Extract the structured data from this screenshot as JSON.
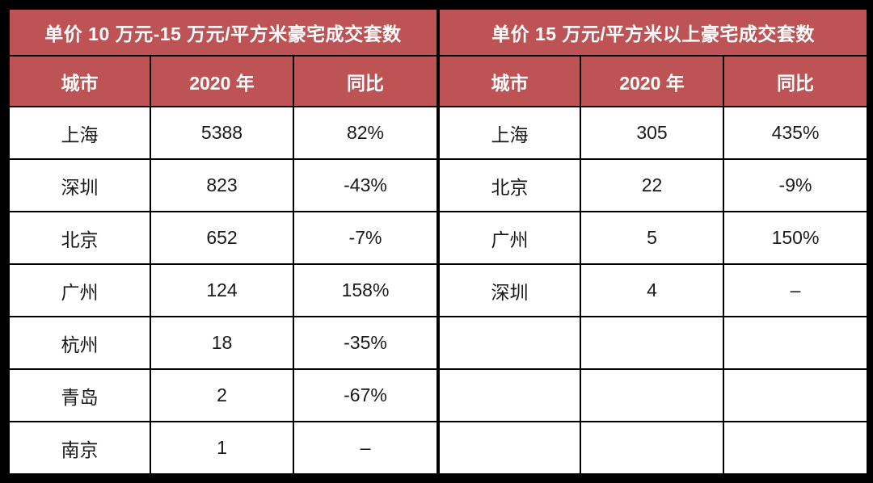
{
  "colors": {
    "accent": "#bd5354",
    "accent_text": "#ffffff",
    "grid": "#000000",
    "cell_bg": "#ffffff",
    "body_text": "#1a1a1a"
  },
  "chart_data": [
    {
      "type": "table",
      "title": "单价 10 万元-15 万元/平方米豪宅成交套数",
      "columns": [
        "城市",
        "2020 年",
        "同比"
      ],
      "rows": [
        [
          "上海",
          "5388",
          "82%"
        ],
        [
          "深圳",
          "823",
          "-43%"
        ],
        [
          "北京",
          "652",
          "-7%"
        ],
        [
          "广州",
          "124",
          "158%"
        ],
        [
          "杭州",
          "18",
          "-35%"
        ],
        [
          "青岛",
          "2",
          "-67%"
        ],
        [
          "南京",
          "1",
          "–"
        ]
      ]
    },
    {
      "type": "table",
      "title": "单价 15 万元/平方米以上豪宅成交套数",
      "columns": [
        "城市",
        "2020 年",
        "同比"
      ],
      "rows": [
        [
          "上海",
          "305",
          "435%"
        ],
        [
          "北京",
          "22",
          "-9%"
        ],
        [
          "广州",
          "5",
          "150%"
        ],
        [
          "深圳",
          "4",
          "–"
        ],
        [
          "",
          "",
          ""
        ],
        [
          "",
          "",
          ""
        ],
        [
          "",
          "",
          ""
        ]
      ]
    }
  ]
}
